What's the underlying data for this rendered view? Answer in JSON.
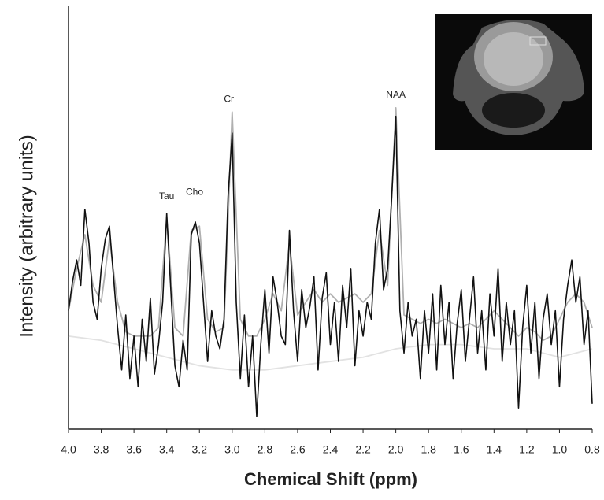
{
  "chart_data": {
    "type": "line",
    "y_label": "Intensity (arbitrary units)",
    "x_label": "Chemical Shift (ppm)",
    "xlim": [
      4.0,
      0.8
    ],
    "ylim": [
      0,
      100
    ],
    "xticks": [
      {
        "value": 4,
        "label": "4.0"
      },
      3.8,
      3.6,
      3.4,
      3.2,
      {
        "value": 3,
        "label": "3.0"
      },
      2.8,
      2.6,
      2.4,
      2.2,
      {
        "value": 2,
        "label": "2.0"
      },
      1.8,
      1.6,
      1.4,
      1.2,
      {
        "value": 1,
        "label": "1.0"
      },
      0.8
    ],
    "annotations": [
      {
        "text": "Tau",
        "x": 3.4,
        "y": 55
      },
      {
        "text": "Cho",
        "x": 3.23,
        "y": 56
      },
      {
        "text": "Cr",
        "x": 3.02,
        "y": 78
      },
      {
        "text": "NAA",
        "x": 2.0,
        "y": 79
      }
    ],
    "series": [
      {
        "color": "#e2e2e2",
        "x": [
          4.0,
          3.8,
          3.6,
          3.4,
          3.2,
          3.0,
          2.8,
          2.6,
          2.4,
          2.2,
          2.0,
          1.8,
          1.6,
          1.4,
          1.2,
          1.0,
          0.8
        ],
        "values": [
          22,
          21,
          19,
          17,
          15,
          14,
          14,
          15,
          16,
          17,
          19,
          20,
          20,
          19,
          19,
          17,
          19
        ]
      },
      {
        "color": "#b0b0b0",
        "x": [
          4.0,
          3.95,
          3.9,
          3.85,
          3.8,
          3.75,
          3.7,
          3.65,
          3.6,
          3.55,
          3.5,
          3.45,
          3.4,
          3.35,
          3.3,
          3.25,
          3.2,
          3.15,
          3.1,
          3.05,
          3.0,
          2.95,
          2.9,
          2.85,
          2.8,
          2.75,
          2.7,
          2.65,
          2.6,
          2.55,
          2.5,
          2.45,
          2.4,
          2.35,
          2.3,
          2.25,
          2.2,
          2.15,
          2.1,
          2.05,
          2.0,
          1.95,
          1.9,
          1.85,
          1.8,
          1.75,
          1.7,
          1.65,
          1.6,
          1.55,
          1.5,
          1.45,
          1.4,
          1.35,
          1.3,
          1.25,
          1.2,
          1.15,
          1.1,
          1.05,
          1.0,
          0.95,
          0.9,
          0.85,
          0.8
        ],
        "values": [
          28,
          38,
          46,
          34,
          30,
          45,
          30,
          23,
          22,
          22,
          22,
          24,
          50,
          24,
          22,
          47,
          48,
          26,
          23,
          24,
          75,
          26,
          22,
          22,
          26,
          32,
          28,
          44,
          27,
          30,
          33,
          30,
          32,
          30,
          31,
          32,
          30,
          32,
          47,
          34,
          76,
          27,
          26,
          25,
          26,
          25,
          26,
          25,
          24,
          25,
          24,
          26,
          28,
          26,
          24,
          22,
          24,
          23,
          21,
          22,
          26,
          30,
          32,
          30,
          24
        ]
      },
      {
        "color": "#111111",
        "x": [
          4.0,
          3.975,
          3.95,
          3.925,
          3.9,
          3.875,
          3.85,
          3.825,
          3.8,
          3.775,
          3.75,
          3.725,
          3.7,
          3.675,
          3.65,
          3.625,
          3.6,
          3.575,
          3.55,
          3.525,
          3.5,
          3.475,
          3.45,
          3.425,
          3.4,
          3.375,
          3.35,
          3.325,
          3.3,
          3.275,
          3.25,
          3.225,
          3.2,
          3.175,
          3.15,
          3.125,
          3.1,
          3.075,
          3.05,
          3.025,
          3.0,
          2.975,
          2.95,
          2.925,
          2.9,
          2.875,
          2.85,
          2.825,
          2.8,
          2.775,
          2.75,
          2.725,
          2.7,
          2.675,
          2.65,
          2.625,
          2.6,
          2.575,
          2.55,
          2.525,
          2.5,
          2.475,
          2.45,
          2.425,
          2.4,
          2.375,
          2.35,
          2.325,
          2.3,
          2.275,
          2.25,
          2.225,
          2.2,
          2.175,
          2.15,
          2.125,
          2.1,
          2.075,
          2.05,
          2.025,
          2.0,
          1.975,
          1.95,
          1.925,
          1.9,
          1.875,
          1.85,
          1.825,
          1.8,
          1.775,
          1.75,
          1.725,
          1.7,
          1.675,
          1.65,
          1.625,
          1.6,
          1.575,
          1.55,
          1.525,
          1.5,
          1.475,
          1.45,
          1.425,
          1.4,
          1.375,
          1.35,
          1.325,
          1.3,
          1.275,
          1.25,
          1.225,
          1.2,
          1.175,
          1.15,
          1.125,
          1.1,
          1.075,
          1.05,
          1.025,
          1.0,
          0.975,
          0.95,
          0.925,
          0.9,
          0.875,
          0.85,
          0.825,
          0.8
        ],
        "values": [
          28,
          35,
          40,
          34,
          52,
          44,
          30,
          26,
          38,
          45,
          48,
          36,
          24,
          14,
          27,
          12,
          22,
          10,
          26,
          16,
          31,
          13,
          20,
          30,
          51,
          33,
          15,
          10,
          21,
          14,
          46,
          49,
          44,
          30,
          16,
          28,
          22,
          19,
          26,
          55,
          70,
          30,
          12,
          27,
          10,
          22,
          3,
          20,
          33,
          18,
          36,
          30,
          22,
          20,
          47,
          28,
          16,
          33,
          24,
          29,
          36,
          14,
          31,
          37,
          20,
          30,
          16,
          34,
          24,
          38,
          15,
          28,
          22,
          30,
          26,
          44,
          52,
          33,
          38,
          55,
          74,
          28,
          18,
          30,
          22,
          26,
          12,
          28,
          18,
          32,
          14,
          34,
          20,
          30,
          12,
          25,
          33,
          16,
          26,
          36,
          18,
          28,
          14,
          32,
          22,
          38,
          16,
          30,
          20,
          28,
          5,
          24,
          34,
          18,
          30,
          12,
          26,
          32,
          20,
          28,
          10,
          26,
          34,
          40,
          30,
          36,
          20,
          28,
          6
        ]
      }
    ]
  }
}
